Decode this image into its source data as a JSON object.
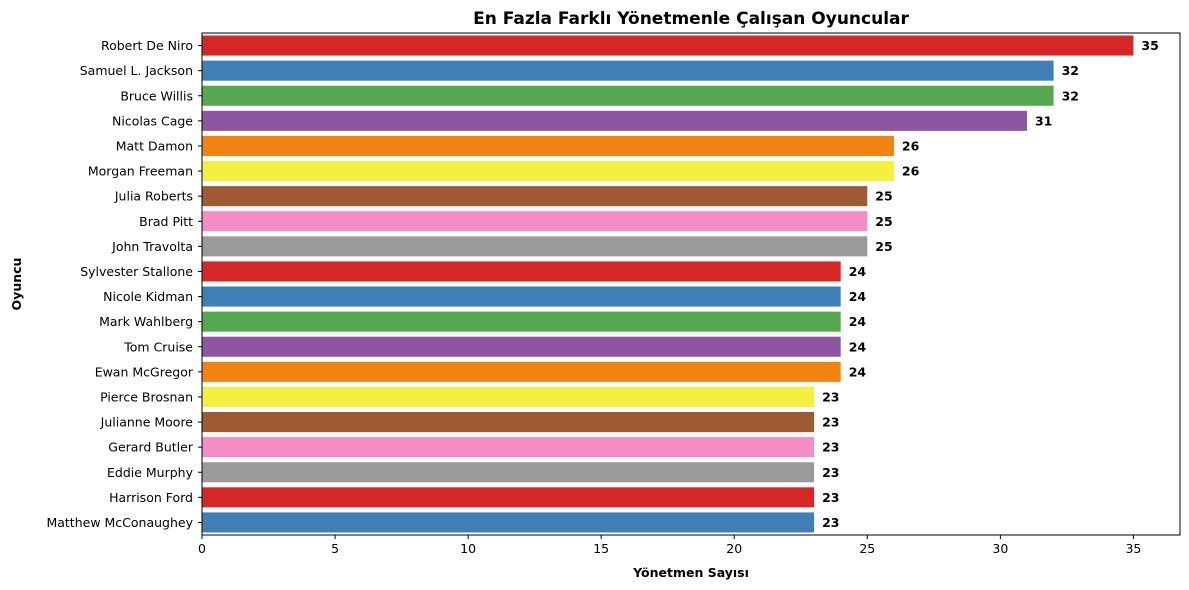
{
  "chart_data": {
    "type": "bar",
    "orientation": "horizontal",
    "title": "En Fazla Farklı Yönetmenle Çalışan Oyuncular",
    "xlabel": "Yönetmen Sayısı",
    "ylabel": "Oyuncu",
    "xlim": [
      0,
      36.75
    ],
    "xticks": [
      0,
      5,
      10,
      15,
      20,
      25,
      30,
      35
    ],
    "grid": false,
    "legend": "none",
    "categories": [
      "Robert De Niro",
      "Samuel L. Jackson",
      "Bruce Willis",
      "Nicolas Cage",
      "Matt Damon",
      "Morgan Freeman",
      "Julia Roberts",
      "Brad Pitt",
      "John Travolta",
      "Sylvester Stallone",
      "Nicole Kidman",
      "Mark Wahlberg",
      "Tom Cruise",
      "Ewan McGregor",
      "Pierce Brosnan",
      "Julianne Moore",
      "Gerard Butler",
      "Eddie Murphy",
      "Harrison Ford",
      "Matthew McConaughey"
    ],
    "values": [
      35,
      32,
      32,
      31,
      26,
      26,
      25,
      25,
      25,
      24,
      24,
      24,
      24,
      24,
      23,
      23,
      23,
      23,
      23,
      23
    ],
    "colors": [
      "#d62728",
      "#3f7fb5",
      "#55a84f",
      "#8e55a0",
      "#f08312",
      "#f3f03f",
      "#9e5a33",
      "#f48dc6",
      "#9a9a9a",
      "#d62728",
      "#3f7fb5",
      "#55a84f",
      "#8e55a0",
      "#f08312",
      "#f3f03f",
      "#9e5a33",
      "#f48dc6",
      "#9a9a9a",
      "#d62728",
      "#3f7fb5"
    ]
  }
}
